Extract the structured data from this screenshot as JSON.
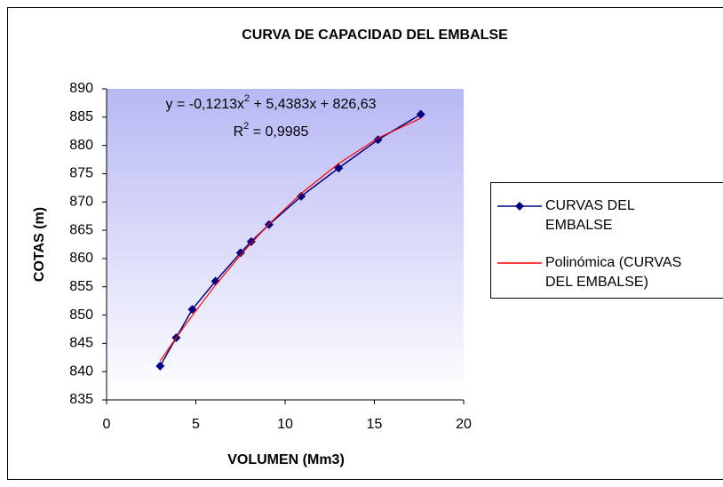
{
  "chart_data": {
    "type": "scatter",
    "title": "CURVA DE CAPACIDAD DEL EMBALSE",
    "x_label": "VOLUMEN (Mm3)",
    "y_label": "COTAS (m)",
    "xlim": [
      0,
      20
    ],
    "xticks": [
      0,
      5,
      10,
      15,
      20
    ],
    "ylim": [
      835,
      890
    ],
    "yticks": [
      835,
      840,
      845,
      850,
      855,
      860,
      865,
      870,
      875,
      880,
      885,
      890
    ],
    "legend": "right",
    "series": [
      {
        "name": "CURVAS DEL EMBALSE",
        "color": "#000080",
        "marker": "diamond",
        "x": [
          3.0,
          3.9,
          4.8,
          6.1,
          7.5,
          8.1,
          9.1,
          10.9,
          13.0,
          15.2,
          17.6
        ],
        "values": [
          841,
          846,
          851,
          856,
          861,
          863,
          866,
          871,
          876,
          881,
          885.5
        ]
      },
      {
        "name": "Polinómica (CURVAS DEL EMBALSE)",
        "color": "#ff0000",
        "marker": "none",
        "x": [
          3.0,
          3.9,
          4.8,
          6.1,
          7.5,
          8.1,
          9.1,
          10.9,
          13.0,
          15.2,
          17.6
        ],
        "values": [
          841.9,
          846.0,
          849.9,
          855.3,
          860.6,
          862.7,
          866.1,
          871.5,
          876.8,
          881.3,
          884.8
        ]
      }
    ],
    "annotations": [
      [
        "y = -0,1213x",
        "2",
        " + 5,4383x + 826,63"
      ],
      [
        "R",
        "2",
        " = 0,9985"
      ]
    ]
  }
}
